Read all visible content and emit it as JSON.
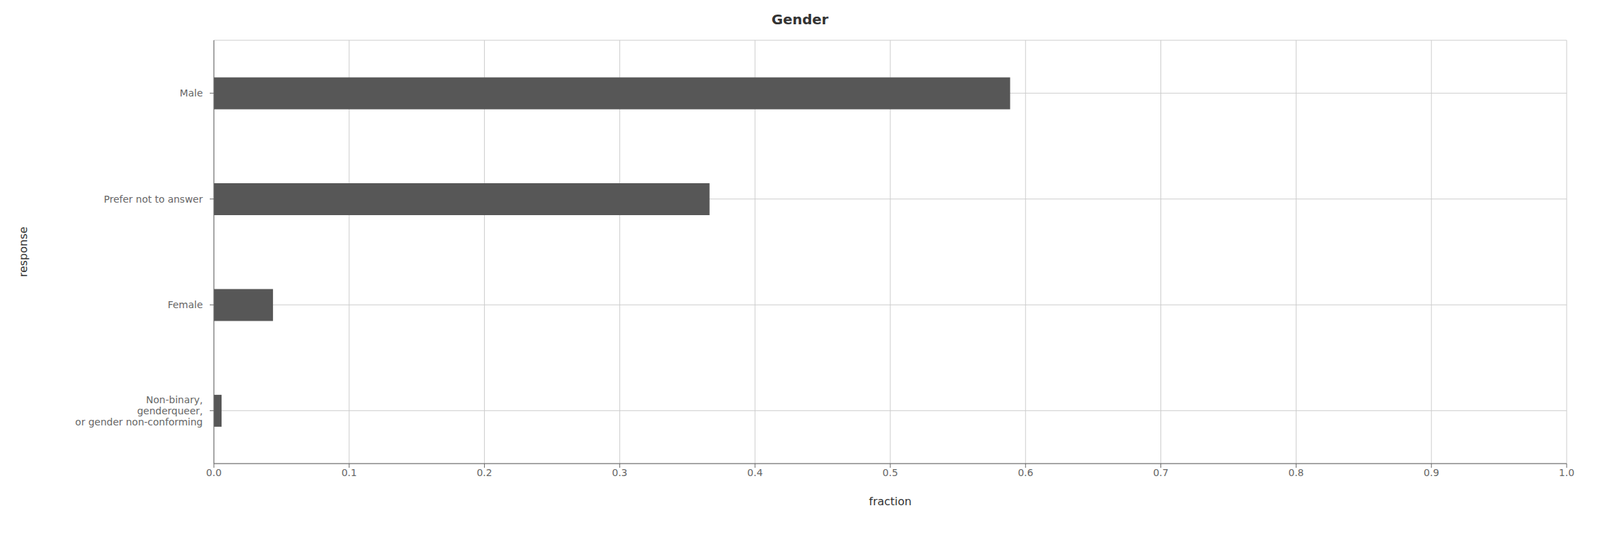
{
  "chart_data": {
    "type": "bar",
    "orientation": "horizontal",
    "title": "Gender",
    "xlabel": "fraction",
    "ylabel": "response",
    "categories": [
      "Non-binary,\ngenderqueer,\nor gender non-conforming",
      "Female",
      "Prefer not to answer",
      "Male"
    ],
    "values": [
      0.0057,
      0.0437,
      0.3664,
      0.5886
    ],
    "color": "#575757",
    "xlim": [
      0,
      1.0
    ],
    "xticks": [
      {
        "value": 0.0,
        "label": "0.0"
      },
      0.1,
      0.2,
      0.3,
      0.4,
      0.5,
      0.6,
      0.7,
      0.8,
      0.9,
      {
        "value": 1.0,
        "label": "1.0"
      }
    ],
    "grid": true
  }
}
